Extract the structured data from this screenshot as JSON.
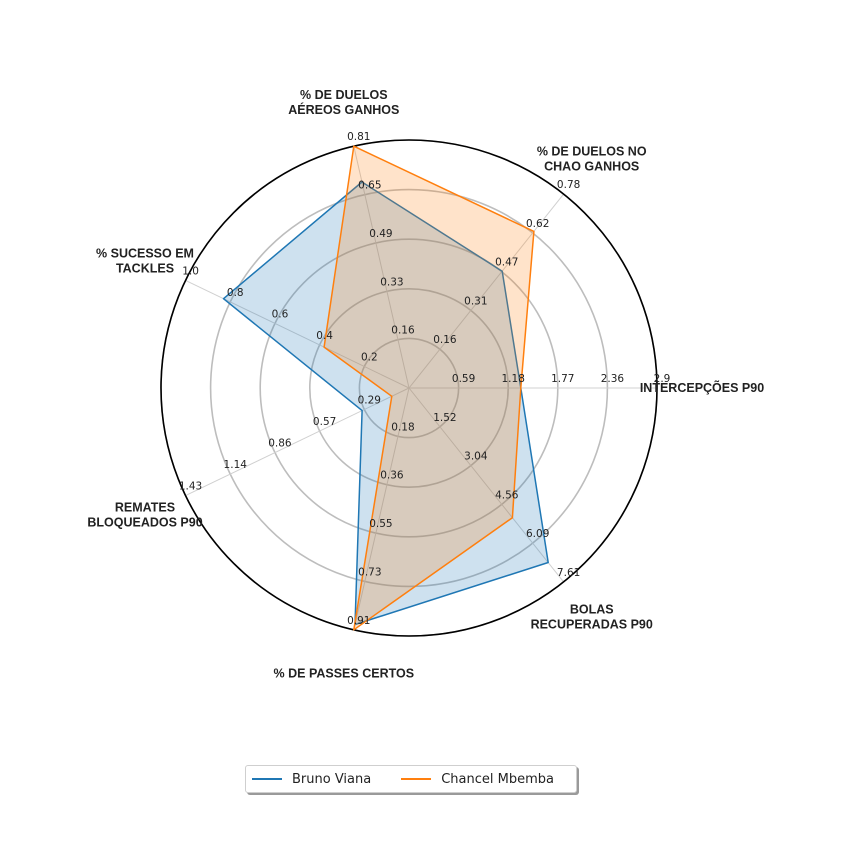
{
  "chart_data": {
    "type": "radar",
    "categories": [
      {
        "lines": [
          "INTERCEPÇÕES P90"
        ],
        "ticks": [
          "0.59",
          "1.18",
          "1.77",
          "2.36",
          "2.9"
        ],
        "max": 2.95
      },
      {
        "lines": [
          "% DE DUELOS NO",
          "CHAO GANHOS"
        ],
        "ticks": [
          "0.16",
          "0.31",
          "0.47",
          "0.62",
          "0.78"
        ],
        "max": 0.78
      },
      {
        "lines": [
          "% DE DUELOS",
          "AÉREOS GANHOS"
        ],
        "ticks": [
          "0.16",
          "0.33",
          "0.49",
          "0.65",
          "0.81"
        ],
        "max": 0.81
      },
      {
        "lines": [
          "% SUCESSO EM",
          "TACKLES"
        ],
        "ticks": [
          "0.2",
          "0.4",
          "0.6",
          "0.8",
          "1.0"
        ],
        "max": 1.0
      },
      {
        "lines": [
          "REMATES",
          "BLOQUEADOS P90"
        ],
        "ticks": [
          "0.29",
          "0.57",
          "0.86",
          "1.14",
          "1.43"
        ],
        "max": 1.43
      },
      {
        "lines": [
          "% DE PASSES CERTOS"
        ],
        "ticks": [
          "0.18",
          "0.36",
          "0.55",
          "0.73",
          "0.91"
        ],
        "max": 0.91
      },
      {
        "lines": [
          "BOLAS",
          "RECUPERADAS P90"
        ],
        "ticks": [
          "1.52",
          "3.04",
          "4.56",
          "6.09",
          "7.61"
        ],
        "max": 7.61
      }
    ],
    "series": [
      {
        "name": "Bruno Viana",
        "color": "#1f77b4",
        "values": [
          1.33,
          0.47,
          0.69,
          0.83,
          0.3,
          0.89,
          6.85
        ]
      },
      {
        "name": "Chancel Mbemba",
        "color": "#ff7f0e",
        "values": [
          1.33,
          0.63,
          0.81,
          0.38,
          0.11,
          0.91,
          5.09
        ]
      }
    ],
    "rings": 5,
    "legend_position": "bottom-center"
  }
}
